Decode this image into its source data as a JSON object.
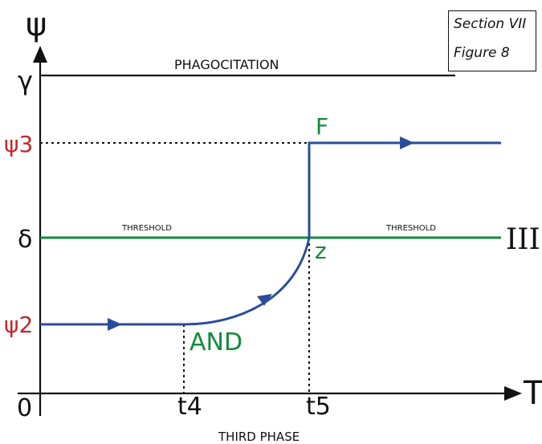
{
  "caption": {
    "line1": "Section VII",
    "line2": "Figure 8"
  },
  "axes": {
    "y_label": "ψ",
    "x_label": "T",
    "origin": "0",
    "y_ticks": [
      "γ",
      "ψ3",
      "δ",
      "ψ2"
    ],
    "x_ticks": [
      "t4",
      "t5"
    ]
  },
  "lines": {
    "top_label": "PHAGOCITATION",
    "threshold_left": "THRESHOLD",
    "threshold_right": "THRESHOLD",
    "threshold_end": "III"
  },
  "points": {
    "f": "F",
    "z": "z",
    "and": "AND"
  },
  "bottom_label": "THIRD PHASE",
  "colors": {
    "blue": "#2a4d9b",
    "green": "#138a3e",
    "red": "#c0272d",
    "black": "#111111"
  }
}
